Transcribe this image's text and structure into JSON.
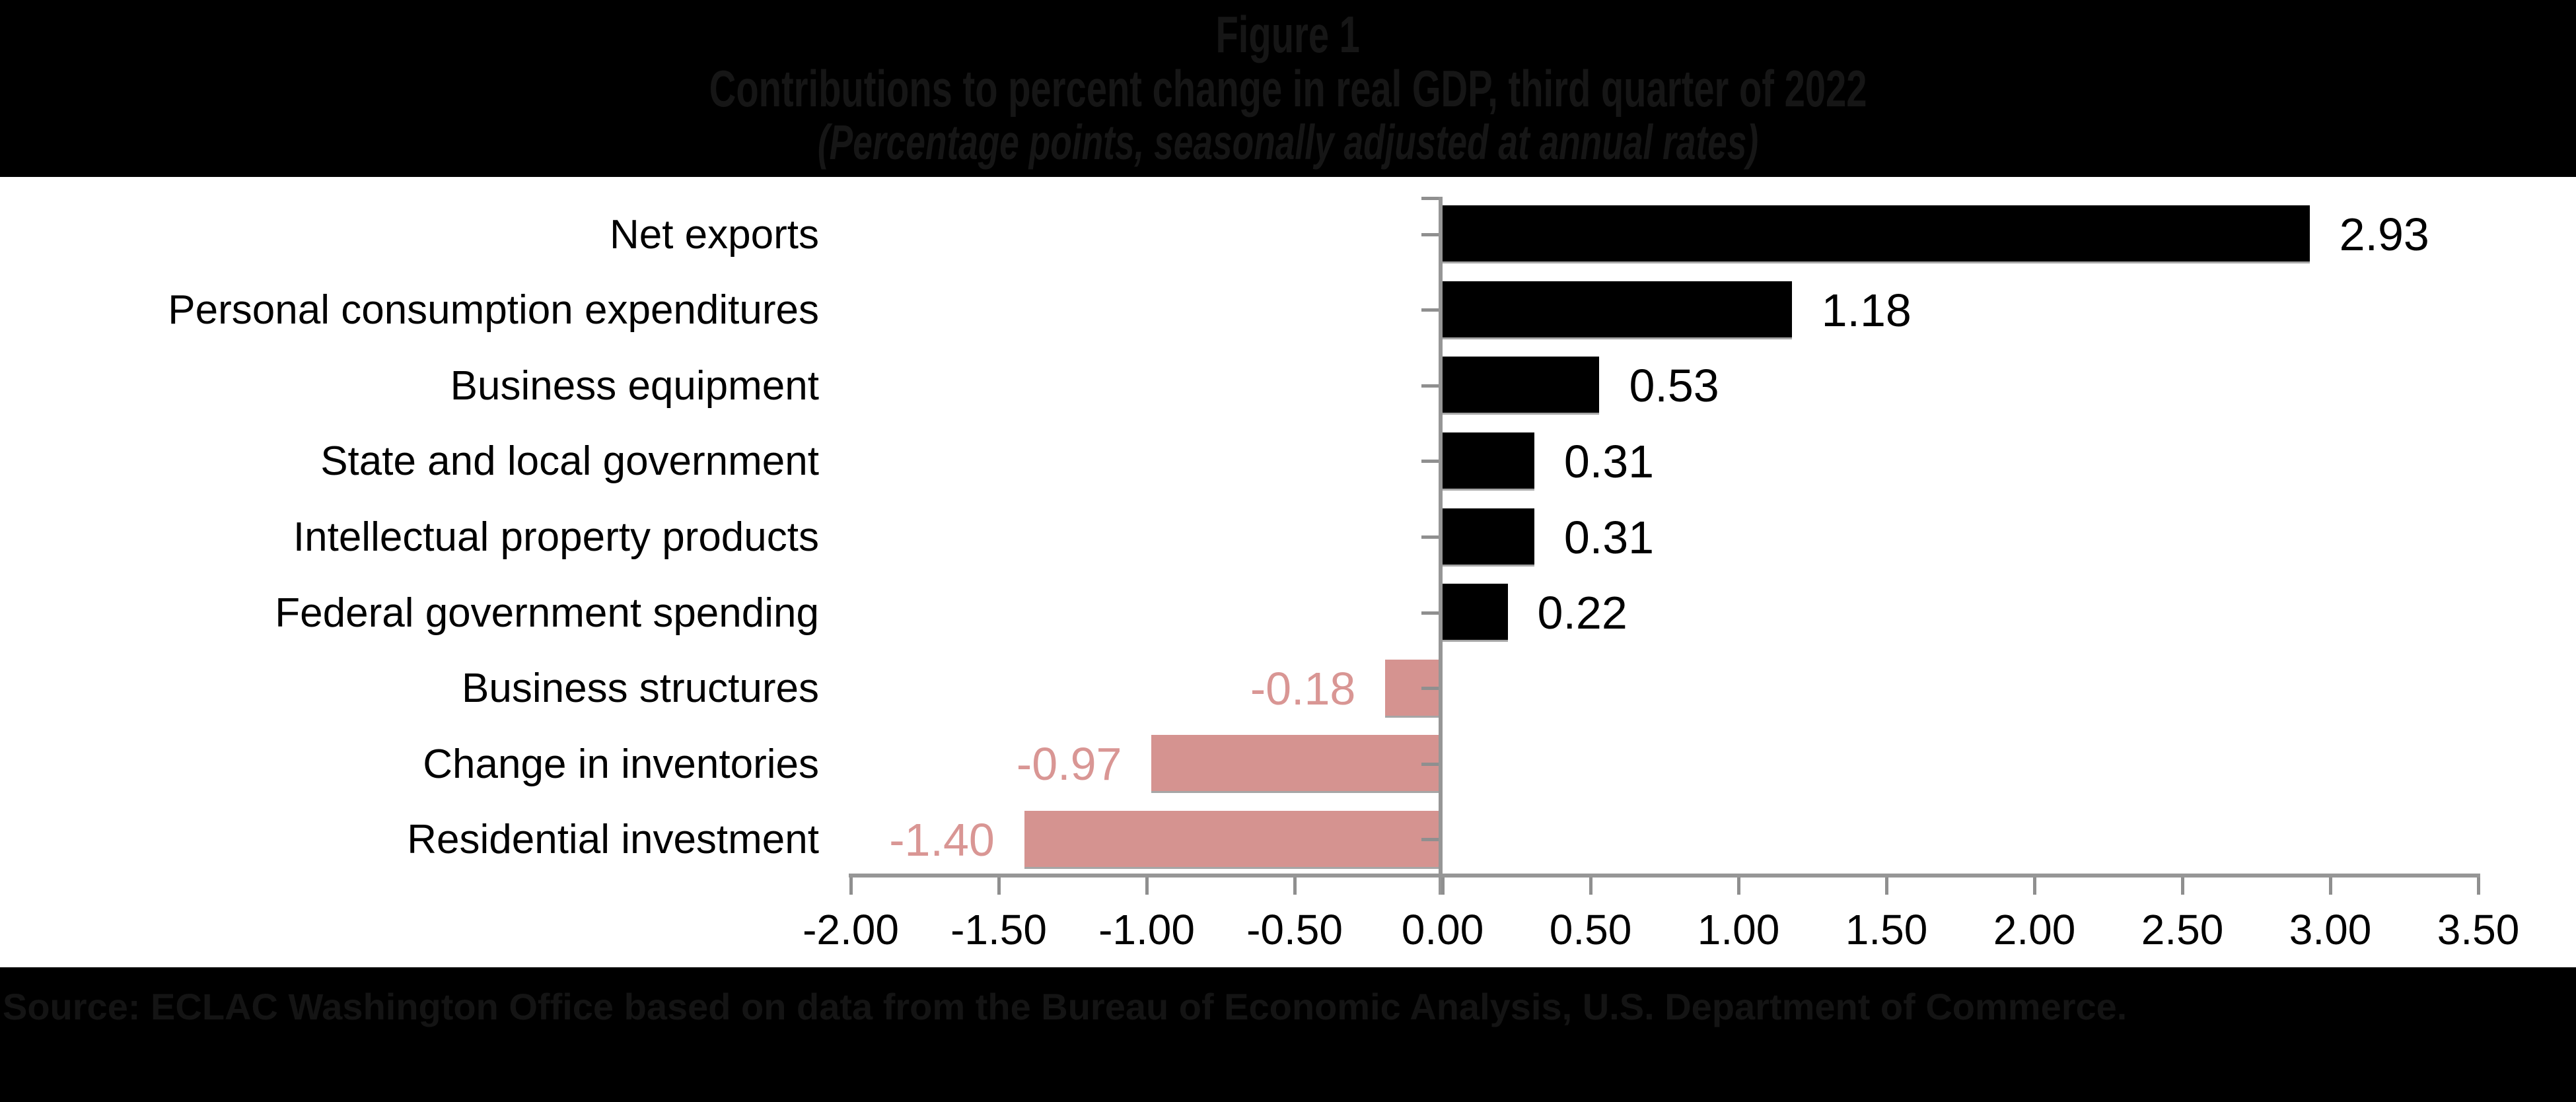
{
  "header": {
    "line1": "Figure 1",
    "line2": "Contributions to percent change in real GDP, third quarter of 2022",
    "line3": "(Percentage points, seasonally adjusted at annual rates)"
  },
  "footer": {
    "source": "Source: ECLAC Washington Office based on data from the Bureau of Economic Analysis, U.S. Department of Commerce."
  },
  "colors": {
    "positive_bar": "#000000",
    "negative_bar": "#d59390",
    "positive_label": "#000000",
    "negative_label": "#d99694",
    "axis": "#969696",
    "tick": "#8f8f8f",
    "band_bg": "#000000"
  },
  "chart_data": {
    "type": "bar",
    "orientation": "horizontal",
    "title": "Figure 1",
    "subtitle": "Contributions to percent change in real GDP, third quarter of 2022",
    "units_note": "(Percentage points, seasonally adjusted at annual rates)",
    "categories": [
      "Net exports",
      "Personal consumption expenditures",
      "Business equipment",
      "State and local government",
      "Intellectual property products",
      "Federal government spending",
      "Business structures",
      "Change in inventories",
      "Residential investment"
    ],
    "values": [
      2.93,
      1.18,
      0.53,
      0.31,
      0.31,
      0.22,
      -0.18,
      -0.97,
      -1.4
    ],
    "value_labels": [
      "2.93",
      "1.18",
      "0.53",
      "0.31",
      "0.31",
      "0.22",
      "-0.18",
      "-0.97",
      "-1.40"
    ],
    "x_ticks": [
      "-2.00",
      "-1.50",
      "-1.00",
      "-0.50",
      "0.00",
      "0.50",
      "1.00",
      "1.50",
      "2.00",
      "2.50",
      "3.00",
      "3.50"
    ],
    "xlim": [
      -2.0,
      3.5
    ],
    "xlabel": "",
    "ylabel": "",
    "grid": false,
    "legend": false
  }
}
